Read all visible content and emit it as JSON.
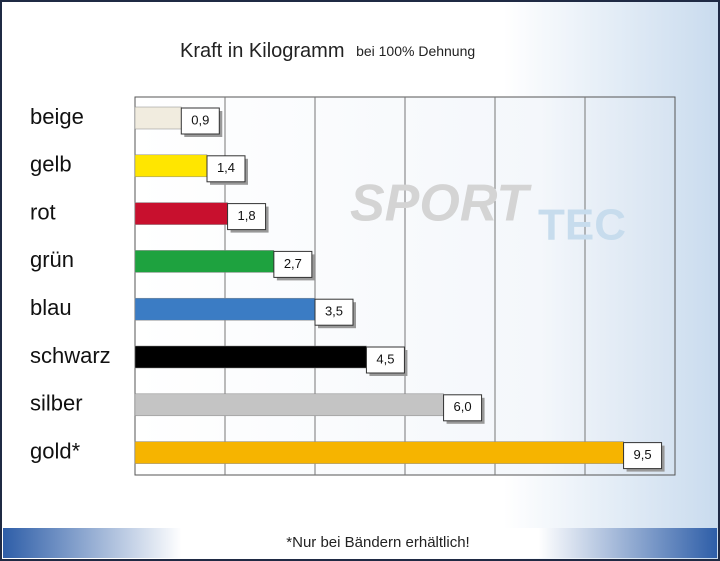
{
  "chart_data": {
    "type": "bar",
    "orientation": "horizontal",
    "title": "Kraft in Kilogramm",
    "subtitle": "bei 100% Dehnung",
    "categories": [
      "beige",
      "gelb",
      "rot",
      "grün",
      "blau",
      "schwarz",
      "silber",
      "gold*"
    ],
    "values": [
      0.9,
      1.4,
      1.8,
      2.7,
      3.5,
      4.5,
      6.0,
      9.5
    ],
    "value_labels": [
      "0,9",
      "1,4",
      "1,8",
      "2,7",
      "3,5",
      "4,5",
      "6,0",
      "9,5"
    ],
    "colors": [
      "#f1ecdf",
      "#ffe600",
      "#c8102e",
      "#1ea23f",
      "#3b7cc4",
      "#000000",
      "#c4c4c4",
      "#f6b400"
    ],
    "xlim": [
      0,
      10.5
    ],
    "watermark": [
      "SPORT",
      "TEC"
    ],
    "footnote": "*Nur bei Bändern erhältlich!"
  }
}
